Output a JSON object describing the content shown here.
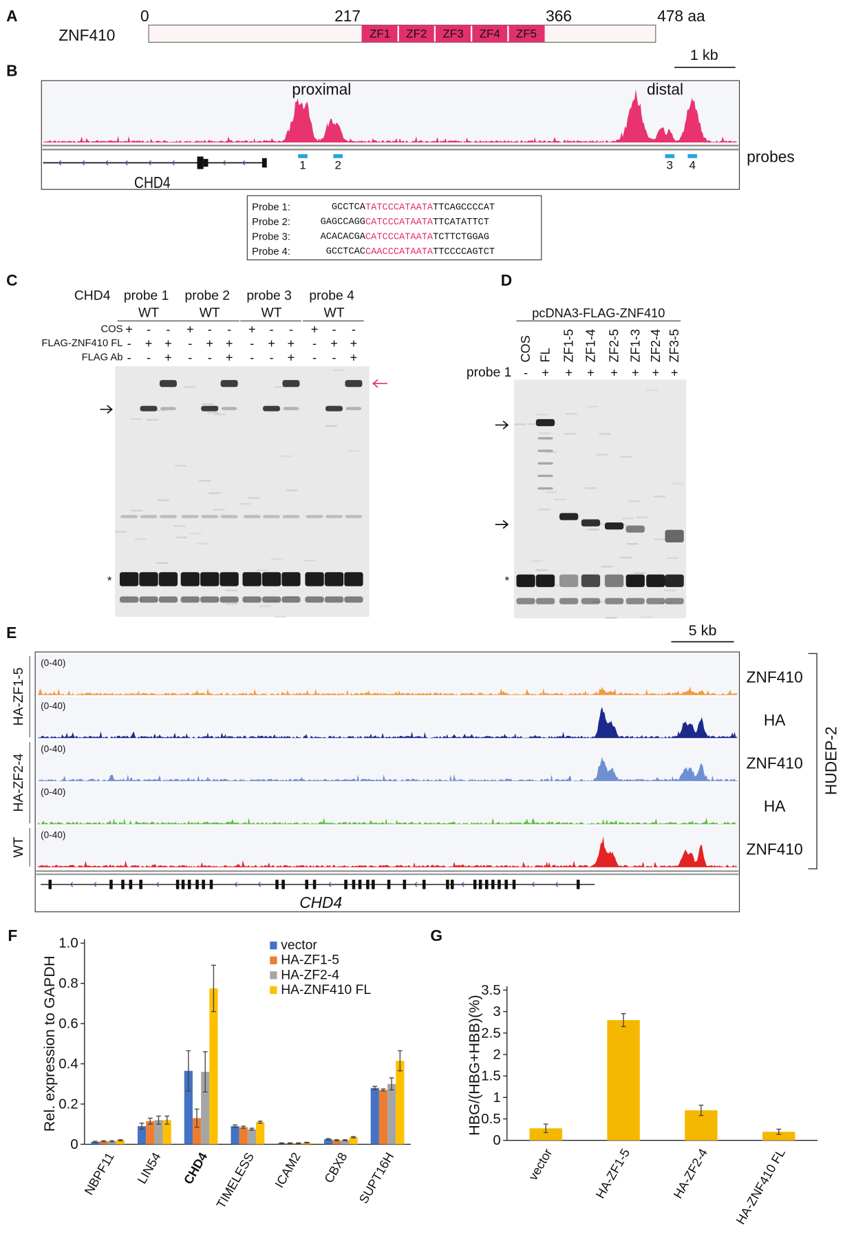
{
  "panel_a": {
    "label": "A",
    "protein": "ZNF410",
    "ticks": [
      0,
      217,
      366,
      {
        "value": 478,
        "label": "478 aa"
      }
    ],
    "domains": [
      "ZF1",
      "ZF2",
      "ZF3",
      "ZF4",
      "ZF5"
    ]
  },
  "panel_b": {
    "label": "B",
    "scale": "1 kb",
    "peaks": [
      "proximal",
      "distal"
    ],
    "probes_label": "probes",
    "probe_numbers": [
      "1",
      "2",
      "3",
      "4"
    ],
    "gene": "CHD4",
    "sequences": [
      {
        "name": "Probe 1:",
        "prefix": "GCCTCA",
        "core": "TATCCCATAATA",
        "suffix": "TTCAGCCCCAT"
      },
      {
        "name": "Probe 2:",
        "prefix": "GAGCCAGG",
        "core": "CATCCCATAATA",
        "suffix": "TTCATATTCT"
      },
      {
        "name": "Probe 3:",
        "prefix": "ACACACGA",
        "core": "CATCCCATAATA",
        "suffix": "TCTTCTGGAG"
      },
      {
        "name": "Probe 4:",
        "prefix": "GCCTCAC",
        "core": "CAACCCATAATA",
        "suffix": "TTCCCCAGTCT"
      }
    ]
  },
  "panel_c": {
    "label": "C",
    "target": "CHD4",
    "probes": [
      "probe 1",
      "probe 2",
      "probe 3",
      "probe 4"
    ],
    "genotype": [
      "WT",
      "WT",
      "WT",
      "WT"
    ],
    "conditions": [
      {
        "name": "COS",
        "signs": [
          "+",
          "-",
          "-",
          "+",
          "-",
          "-",
          "+",
          "-",
          "-",
          "+",
          "-",
          "-"
        ]
      },
      {
        "name": "FLAG-ZNF410 FL",
        "signs": [
          "-",
          "+",
          "+",
          "-",
          "+",
          "+",
          "-",
          "+",
          "+",
          "-",
          "+",
          "+"
        ]
      },
      {
        "name": "FLAG Ab",
        "signs": [
          "-",
          "-",
          "+",
          "-",
          "-",
          "+",
          "-",
          "-",
          "+",
          "-",
          "-",
          "+"
        ]
      }
    ],
    "marker": "*"
  },
  "panel_d": {
    "label": "D",
    "construct": "pcDNA3-FLAG-ZNF410",
    "lanes": [
      "COS",
      "FL",
      "ZF1-5",
      "ZF1-4",
      "ZF2-5",
      "ZF1-3",
      "ZF2-4",
      "ZF3-5"
    ],
    "probe": "probe 1",
    "signs": [
      "-",
      "+",
      "+",
      "+",
      "+",
      "+",
      "+",
      "+"
    ],
    "marker": "*"
  },
  "panel_e": {
    "label": "E",
    "scale": "5 kb",
    "cell_line": "HUDEP-2",
    "gene": "CHD4",
    "groups": [
      "HA-ZF1-5",
      "HA-ZF2-4",
      "WT"
    ],
    "tracks": [
      {
        "range": "(0-40)",
        "name": "ZNF410",
        "color": "#f29a3a"
      },
      {
        "range": "(0-40)",
        "name": "HA",
        "color": "#1c2a8c"
      },
      {
        "range": "(0-40)",
        "name": "ZNF410",
        "color": "#6f8fd2"
      },
      {
        "range": "(0-40)",
        "name": "HA",
        "color": "#5cbf3c"
      },
      {
        "range": "(0-40)",
        "name": "ZNF410",
        "color": "#e42424"
      }
    ]
  },
  "chart_data": [
    {
      "type": "bar",
      "label": "F",
      "y_label": "Rel. expression to GAPDH",
      "categories": [
        "NBPF11",
        "LIN54",
        "CHD4",
        "TIMELESS",
        "ICAM2",
        "CBX8",
        "SUPT16H"
      ],
      "category_colors": [
        "#111111",
        "#111111",
        "#e02020",
        "#111111",
        "#111111",
        "#111111",
        "#111111"
      ],
      "series": [
        {
          "name": "vector",
          "color": "#4472c4",
          "values": [
            0.012,
            0.09,
            0.365,
            0.09,
            0.005,
            0.025,
            0.28
          ],
          "errors": [
            0.003,
            0.015,
            0.1,
            0.006,
            0.002,
            0.003,
            0.008
          ]
        },
        {
          "name": "HA-ZF1-5",
          "color": "#ed7d31",
          "values": [
            0.015,
            0.115,
            0.13,
            0.085,
            0.005,
            0.02,
            0.27
          ],
          "errors": [
            0.003,
            0.015,
            0.045,
            0.005,
            0.002,
            0.003,
            0.005
          ]
        },
        {
          "name": "HA-ZF2-4",
          "color": "#a5a5a5",
          "values": [
            0.015,
            0.12,
            0.36,
            0.075,
            0.005,
            0.02,
            0.3
          ],
          "errors": [
            0.003,
            0.02,
            0.1,
            0.005,
            0.002,
            0.003,
            0.03
          ]
        },
        {
          "name": "HA-ZNF410 FL",
          "color": "#ffc000",
          "values": [
            0.02,
            0.12,
            0.775,
            0.11,
            0.008,
            0.035,
            0.415
          ],
          "errors": [
            0.003,
            0.02,
            0.115,
            0.005,
            0.002,
            0.003,
            0.05
          ]
        }
      ],
      "ylim": [
        0,
        1
      ],
      "yticks": [
        0,
        0.2,
        0.4,
        0.6,
        0.8,
        {
          "value": 1,
          "label": "1.0"
        }
      ],
      "legend": "top-right"
    },
    {
      "type": "bar",
      "label": "G",
      "y_label": "HBG/(HBG+HBB)(%)",
      "categories": [
        "vector",
        "HA-ZF1-5",
        "HA-ZF2-4",
        "HA-ZNF410 FL"
      ],
      "values": [
        0.28,
        2.8,
        0.7,
        0.2
      ],
      "errors": [
        0.1,
        0.15,
        0.12,
        0.06
      ],
      "color": "#f5b800",
      "ylim": [
        0,
        3.5
      ],
      "yticks": [
        0,
        0.5,
        1,
        1.5,
        2,
        2.5,
        3,
        3.5
      ]
    }
  ]
}
